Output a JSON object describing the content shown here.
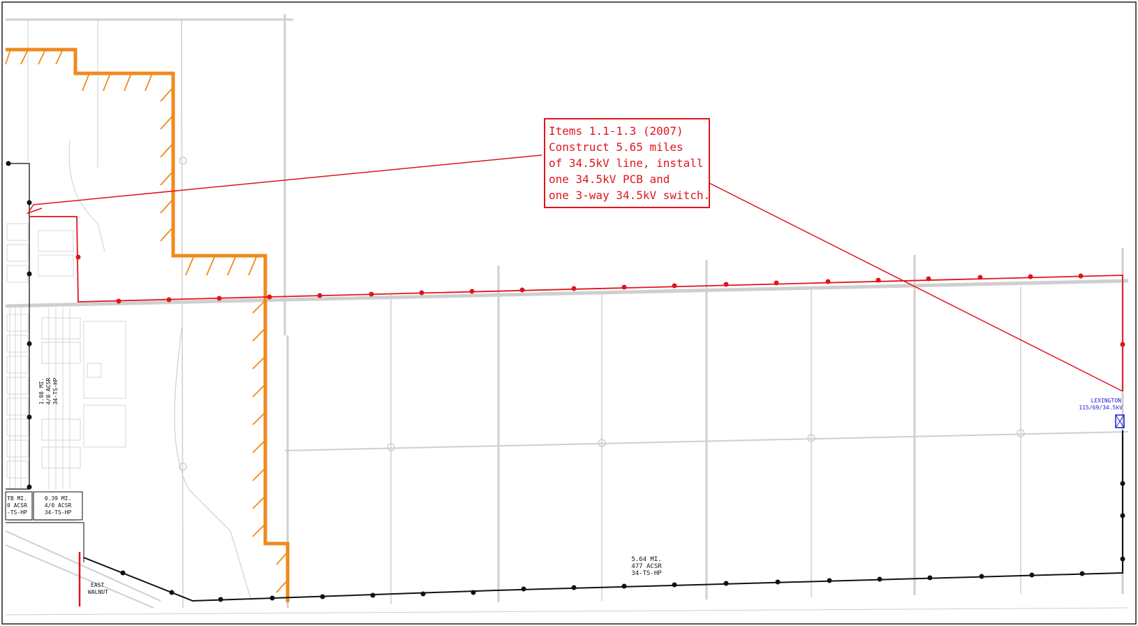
{
  "callout": {
    "lines": [
      "Items 1.1-1.3 (2007)",
      "Construct 5.65 miles",
      "of 34.5kV line, install",
      "one 34.5kV PCB and",
      "one 3-way 34.5kV switch."
    ]
  },
  "substation": {
    "name": "LEXINGTON",
    "rating": "115/69/34.5kV"
  },
  "line_labels": {
    "bottom_main": [
      "5.64 MI.",
      "477 ACSR",
      "34-TS-HP"
    ],
    "left_mid": [
      "0.39 MI.",
      "4/0 ACSR",
      "34-TS-HP"
    ],
    "left_edge": [
      "TB MI.",
      "0 ACSR",
      "-TS-HP"
    ],
    "vertical": [
      "1.08 MI.",
      "4/0 ACSR",
      "34-TS-HP"
    ]
  },
  "street": {
    "name_line1": "EAST",
    "name_line2": "WALNUT"
  },
  "colors": {
    "proposed_line": "#e0141c",
    "existing_line": "#111111",
    "boundary": "#f08a1c",
    "roads": "#cfcfcf",
    "substation": "#1a1ad6"
  }
}
